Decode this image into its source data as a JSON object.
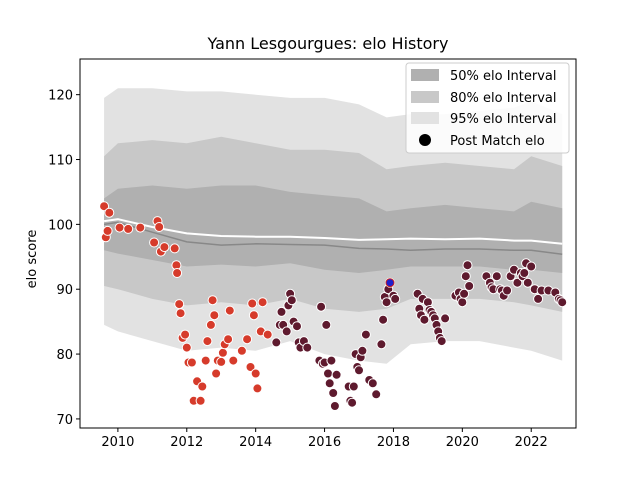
{
  "chart_data": {
    "type": "scatter",
    "title": "Yann Lesgourgues: elo History",
    "xlabel": "",
    "ylabel": "elo score",
    "xlim": [
      2008.9,
      2023.3
    ],
    "ylim": [
      68.6,
      125.5
    ],
    "x_ticks": [
      2010,
      2012,
      2014,
      2016,
      2018,
      2020,
      2022
    ],
    "y_ticks": [
      70,
      80,
      90,
      100,
      110,
      120
    ],
    "grid": false,
    "legend_position": "top-right",
    "legend": [
      "50% elo Interval",
      "80% elo Interval",
      "95% elo Interval",
      "Post Match elo"
    ],
    "colors": {
      "band_50": "#b0b0b0",
      "band_80": "#c8c8c8",
      "band_95": "#e2e2e2",
      "median_line": "#888888",
      "mean_line": "#ffffff",
      "points_early": "#d63b2b",
      "points_late": "#5e1a2e",
      "highlight": "#1f1fcc"
    },
    "bands": {
      "x": [
        2009.6,
        2010.0,
        2011.0,
        2012.0,
        2013.0,
        2014.0,
        2015.0,
        2016.0,
        2017.0,
        2017.8,
        2018.5,
        2019.5,
        2020.5,
        2021.5,
        2022.0,
        2022.9
      ],
      "p95_low": [
        84.5,
        83.5,
        82.0,
        80.5,
        81.0,
        80.5,
        82.0,
        80.0,
        79.0,
        78.5,
        81.5,
        82.0,
        82.0,
        81.0,
        80.5,
        79.0
      ],
      "p80_low": [
        90.5,
        90.0,
        88.5,
        87.5,
        88.0,
        87.5,
        88.5,
        87.0,
        86.5,
        87.0,
        88.5,
        88.5,
        88.5,
        88.0,
        87.5,
        86.5
      ],
      "p50_low": [
        96.0,
        95.5,
        94.5,
        93.5,
        93.8,
        93.5,
        94.0,
        93.0,
        92.5,
        93.0,
        93.5,
        93.5,
        93.5,
        93.0,
        93.0,
        92.5
      ],
      "p50_high": [
        104.0,
        105.5,
        106.0,
        105.5,
        106.0,
        106.0,
        105.0,
        104.5,
        104.0,
        102.0,
        102.5,
        103.0,
        102.5,
        102.0,
        103.5,
        102.5
      ],
      "p80_high": [
        110.5,
        112.5,
        113.0,
        112.5,
        113.5,
        112.5,
        111.5,
        111.5,
        111.0,
        108.5,
        109.0,
        109.5,
        109.0,
        108.5,
        110.5,
        109.0
      ],
      "p95_high": [
        119.5,
        121.0,
        121.0,
        120.5,
        120.5,
        120.0,
        119.5,
        119.5,
        118.5,
        116.5,
        117.0,
        117.0,
        117.5,
        118.0,
        119.0,
        117.0
      ],
      "median": [
        100.0,
        100.3,
        98.8,
        97.3,
        96.8,
        97.0,
        96.9,
        96.8,
        96.3,
        96.2,
        96.0,
        96.2,
        96.2,
        96.0,
        96.0,
        95.4
      ],
      "mean": [
        100.5,
        100.8,
        99.6,
        98.6,
        98.2,
        98.1,
        98.1,
        97.9,
        97.6,
        97.7,
        97.8,
        97.7,
        97.8,
        97.5,
        97.5,
        97.0
      ]
    },
    "series": [
      {
        "name": "Post Match elo",
        "group": "early",
        "x": [
          2009.6,
          2009.65,
          2009.7,
          2009.75,
          2010.05,
          2010.3,
          2010.65,
          2011.05,
          2011.15,
          2011.2,
          2011.25,
          2011.35,
          2011.65,
          2011.7,
          2011.72,
          2011.78,
          2011.82,
          2011.88,
          2011.95,
          2012.0,
          2012.05,
          2012.15,
          2012.2,
          2012.3,
          2012.4,
          2012.45,
          2012.55,
          2012.6,
          2012.7,
          2012.75,
          2012.8,
          2012.85,
          2012.9,
          2013.0,
          2013.05,
          2013.1,
          2013.2,
          2013.25,
          2013.35,
          2013.6,
          2013.75,
          2013.85,
          2013.9,
          2013.95,
          2014.0,
          2014.05,
          2014.15,
          2014.2,
          2014.35
        ],
        "y": [
          102.8,
          98.0,
          99.0,
          101.8,
          99.5,
          99.3,
          99.5,
          97.2,
          100.5,
          99.6,
          95.8,
          96.5,
          96.3,
          93.7,
          92.5,
          87.7,
          86.3,
          82.5,
          83.0,
          81.0,
          78.7,
          78.7,
          72.8,
          75.8,
          72.8,
          75.0,
          79.0,
          82.0,
          84.5,
          88.3,
          86.0,
          77.0,
          79.0,
          78.8,
          80.2,
          81.5,
          82.3,
          86.7,
          79.0,
          80.5,
          82.3,
          78.0,
          87.8,
          86.0,
          77.0,
          74.7,
          83.5,
          88.0,
          83.0
        ]
      },
      {
        "name": "Post Match elo",
        "group": "late",
        "x": [
          2014.6,
          2014.7,
          2014.75,
          2014.8,
          2014.9,
          2014.95,
          2015.0,
          2015.05,
          2015.1,
          2015.2,
          2015.25,
          2015.3,
          2015.4,
          2015.5,
          2015.85,
          2015.9,
          2015.95,
          2016.0,
          2016.05,
          2016.1,
          2016.15,
          2016.2,
          2016.25,
          2016.3,
          2016.35,
          2016.7,
          2016.75,
          2016.8,
          2016.85,
          2016.9,
          2016.95,
          2017.0,
          2017.05,
          2017.1,
          2017.2,
          2017.3,
          2017.4,
          2017.5,
          2017.65,
          2017.7,
          2017.75,
          2017.8,
          2017.85,
          2017.9,
          2018.0,
          2018.05,
          2018.7,
          2018.75,
          2018.8,
          2018.85,
          2018.9,
          2019.0,
          2019.05,
          2019.1,
          2019.15,
          2019.2,
          2019.25,
          2019.3,
          2019.35,
          2019.4,
          2019.5,
          2019.8,
          2019.9,
          2019.95,
          2020.0,
          2020.05,
          2020.1,
          2020.15,
          2020.2,
          2020.7,
          2020.8,
          2020.85,
          2020.9,
          2021.0,
          2021.1,
          2021.15,
          2021.2,
          2021.3,
          2021.4,
          2021.5,
          2021.6,
          2021.7,
          2021.75,
          2021.8,
          2021.85,
          2021.9,
          2022.0,
          2022.1,
          2022.2,
          2022.3,
          2022.5,
          2022.7,
          2022.8,
          2022.85,
          2022.9
        ],
        "y": [
          81.8,
          84.5,
          86.5,
          84.5,
          83.5,
          87.5,
          89.3,
          88.3,
          85.0,
          84.3,
          81.8,
          81.0,
          82.0,
          81.0,
          79.0,
          87.3,
          78.5,
          78.7,
          84.5,
          77.0,
          75.5,
          79.0,
          74.0,
          72.0,
          76.8,
          75.0,
          72.8,
          72.5,
          75.0,
          80.0,
          78.0,
          77.5,
          79.5,
          80.5,
          83.0,
          76.0,
          75.5,
          73.8,
          81.5,
          85.3,
          88.8,
          88.0,
          90.0,
          91.0,
          89.0,
          88.5,
          89.3,
          87.0,
          86.0,
          88.5,
          85.3,
          88.0,
          86.8,
          86.5,
          86.0,
          85.5,
          84.5,
          83.5,
          82.5,
          82.0,
          85.5,
          89.0,
          89.5,
          88.5,
          88.0,
          89.3,
          92.0,
          93.7,
          90.5,
          92.0,
          91.0,
          90.3,
          90.0,
          92.0,
          90.0,
          89.8,
          89.0,
          89.8,
          92.0,
          93.0,
          91.0,
          92.5,
          92.0,
          92.5,
          94.0,
          91.0,
          93.5,
          90.0,
          88.5,
          89.8,
          89.8,
          89.5,
          88.5,
          88.3,
          88.0
        ]
      }
    ],
    "highlight_point": {
      "x": 2017.9,
      "y": 91.0
    }
  }
}
